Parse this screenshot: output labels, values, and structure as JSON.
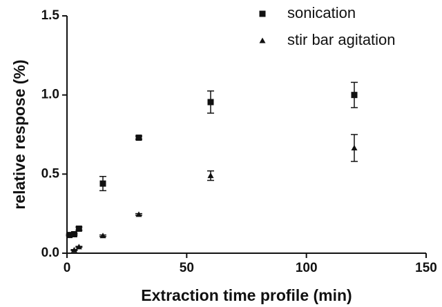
{
  "chart_data": {
    "type": "scatter",
    "xlabel": "Extraction time profile (min)",
    "ylabel": "relative respose (%)",
    "xlim": [
      0,
      150
    ],
    "ylim": [
      0,
      1.5
    ],
    "xticks": [
      0,
      50,
      100,
      150
    ],
    "yticks": [
      {
        "value": 0,
        "label": "0.0"
      },
      {
        "value": 0.5,
        "label": "0.5"
      },
      {
        "value": 1,
        "label": "1.0"
      },
      {
        "value": 1.5,
        "label": "1.5"
      }
    ],
    "legend": "upper right",
    "series": [
      {
        "name": "sonication",
        "color": "#111111",
        "marker": "square",
        "x": [
          1,
          3,
          5,
          15,
          30,
          60,
          120
        ],
        "values": [
          0.115,
          0.12,
          0.155,
          0.44,
          0.73,
          0.955,
          1.0
        ],
        "errors": [
          0.005,
          0.005,
          0.01,
          0.045,
          0.01,
          0.07,
          0.08
        ]
      },
      {
        "name": "stir bar agitation",
        "color": "#111111",
        "marker": "triangle",
        "x": [
          3,
          5,
          15,
          30,
          60,
          120
        ],
        "values": [
          0.02,
          0.04,
          0.11,
          0.245,
          0.49,
          0.665
        ],
        "errors": [
          0.003,
          0.003,
          0.005,
          0.005,
          0.03,
          0.085
        ]
      }
    ]
  }
}
